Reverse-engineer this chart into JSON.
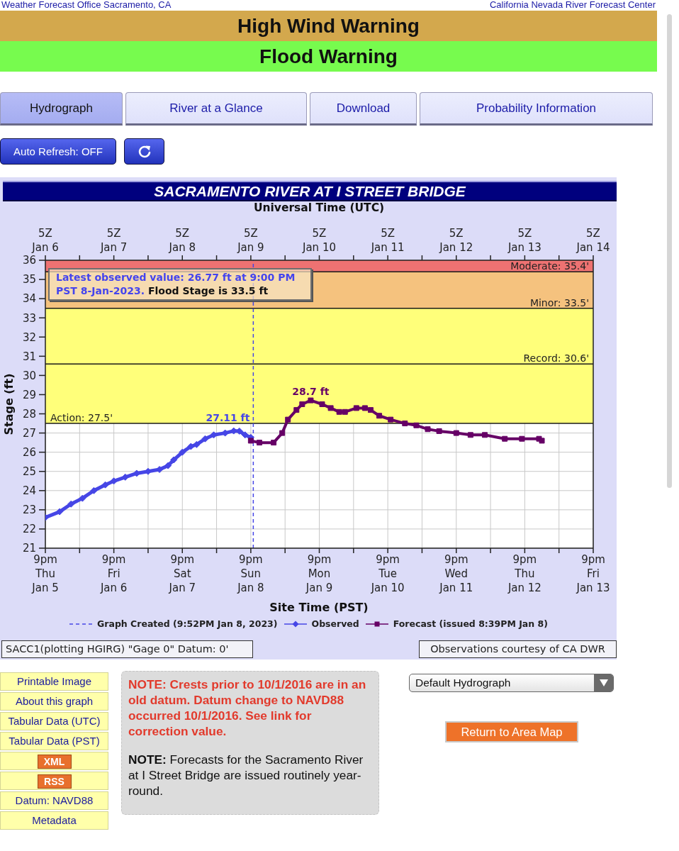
{
  "chart_data": {
    "type": "line",
    "title": "SACRAMENTO RIVER AT I STREET BRIDGE",
    "xlabel": "Site Time (PST)",
    "x2label": "Universal Time (UTC)",
    "ylabel": "Stage (ft)",
    "xlim": [
      "2023-01-05T21:00",
      "2023-01-13T21:00"
    ],
    "xticks": [
      {
        "value": "2023-01-05T21:00",
        "label": "9pm\nThu\nJan 5"
      },
      {
        "value": "2023-01-06T09:00",
        "label": null
      },
      {
        "value": "2023-01-06T21:00",
        "label": "9pm\nFri\nJan 6"
      },
      {
        "value": "2023-01-07T09:00",
        "label": null
      },
      {
        "value": "2023-01-07T21:00",
        "label": "9pm\nSat\nJan 7"
      },
      {
        "value": "2023-01-08T09:00",
        "label": null
      },
      {
        "value": "2023-01-08T21:00",
        "label": "9pm\nSun\nJan 8"
      },
      {
        "value": "2023-01-09T09:00",
        "label": null
      },
      {
        "value": "2023-01-09T21:00",
        "label": "9pm\nMon\nJan 9"
      },
      {
        "value": "2023-01-10T09:00",
        "label": null
      },
      {
        "value": "2023-01-10T21:00",
        "label": "9pm\nTue\nJan 10"
      },
      {
        "value": "2023-01-11T09:00",
        "label": null
      },
      {
        "value": "2023-01-11T21:00",
        "label": "9pm\nWed\nJan 11"
      },
      {
        "value": "2023-01-12T09:00",
        "label": null
      },
      {
        "value": "2023-01-12T21:00",
        "label": "9pm\nThu\nJan 12"
      },
      {
        "value": "2023-01-13T09:00",
        "label": null
      },
      {
        "value": "2023-01-13T21:00",
        "label": "9pm\nFri\nJan 13"
      }
    ],
    "x2lim": [
      "2023-01-06T05:00",
      "2023-01-14T05:00"
    ],
    "x2ticks": [
      {
        "value": "2023-01-06T05:00",
        "label": "5Z\nJan 6"
      },
      {
        "value": "2023-01-06T17:00",
        "label": null
      },
      {
        "value": "2023-01-07T05:00",
        "label": "5Z\nJan 7"
      },
      {
        "value": "2023-01-07T17:00",
        "label": null
      },
      {
        "value": "2023-01-08T05:00",
        "label": "5Z\nJan 8"
      },
      {
        "value": "2023-01-08T17:00",
        "label": null
      },
      {
        "value": "2023-01-09T05:00",
        "label": "5Z\nJan 9"
      },
      {
        "value": "2023-01-09T17:00",
        "label": null
      },
      {
        "value": "2023-01-10T05:00",
        "label": "5Z\nJan 10"
      },
      {
        "value": "2023-01-10T17:00",
        "label": null
      },
      {
        "value": "2023-01-11T05:00",
        "label": "5Z\nJan 11"
      },
      {
        "value": "2023-01-11T17:00",
        "label": null
      },
      {
        "value": "2023-01-12T05:00",
        "label": "5Z\nJan 12"
      },
      {
        "value": "2023-01-12T17:00",
        "label": null
      },
      {
        "value": "2023-01-13T05:00",
        "label": "5Z\nJan 13"
      },
      {
        "value": "2023-01-13T17:00",
        "label": null
      },
      {
        "value": "2023-01-14T05:00",
        "label": "5Z\nJan 14"
      }
    ],
    "ylim": [
      21,
      36
    ],
    "yticks": [
      21,
      22,
      23,
      24,
      25,
      26,
      27,
      28,
      29,
      30,
      31,
      32,
      33,
      34,
      35,
      36
    ],
    "grid": true,
    "legend": "bottom",
    "series": [
      {
        "name": "Observed",
        "color": "#4646e6",
        "marker": "diamond",
        "x": [
          "2023-01-05T21:00",
          "2023-01-06T02:00",
          "2023-01-06T06:00",
          "2023-01-06T10:00",
          "2023-01-06T14:00",
          "2023-01-06T18:00",
          "2023-01-06T21:00",
          "2023-01-07T01:00",
          "2023-01-07T05:00",
          "2023-01-07T09:00",
          "2023-01-07T13:00",
          "2023-01-07T16:00",
          "2023-01-07T18:00",
          "2023-01-07T21:00",
          "2023-01-08T00:00",
          "2023-01-08T02:00",
          "2023-01-08T05:00",
          "2023-01-08T08:00",
          "2023-01-08T12:00",
          "2023-01-08T15:00",
          "2023-01-08T17:00",
          "2023-01-08T19:00",
          "2023-01-08T21:00"
        ],
        "values": [
          22.6,
          22.9,
          23.3,
          23.6,
          24.0,
          24.3,
          24.5,
          24.7,
          24.9,
          25.0,
          25.1,
          25.3,
          25.6,
          26.0,
          26.3,
          26.4,
          26.7,
          26.9,
          27.0,
          27.11,
          27.1,
          26.9,
          26.77
        ]
      },
      {
        "name": "Forecast (issued 8:39PM Jan 8)",
        "color": "#660066",
        "marker": "square",
        "x": [
          "2023-01-08T21:00",
          "2023-01-09T00:00",
          "2023-01-09T05:00",
          "2023-01-09T08:00",
          "2023-01-09T10:00",
          "2023-01-09T13:00",
          "2023-01-09T15:00",
          "2023-01-09T18:00",
          "2023-01-09T22:00",
          "2023-01-10T01:00",
          "2023-01-10T04:00",
          "2023-01-10T06:00",
          "2023-01-10T10:00",
          "2023-01-10T13:00",
          "2023-01-10T15:00",
          "2023-01-10T18:00",
          "2023-01-10T22:00",
          "2023-01-11T03:00",
          "2023-01-11T07:00",
          "2023-01-11T11:00",
          "2023-01-11T15:00",
          "2023-01-11T21:00",
          "2023-01-12T02:00",
          "2023-01-12T07:00",
          "2023-01-12T14:00",
          "2023-01-12T20:00",
          "2023-01-13T02:00",
          "2023-01-13T03:00"
        ],
        "values": [
          26.6,
          26.5,
          26.5,
          27.0,
          27.7,
          28.2,
          28.5,
          28.7,
          28.5,
          28.3,
          28.1,
          28.1,
          28.3,
          28.3,
          28.2,
          27.9,
          27.7,
          27.5,
          27.4,
          27.2,
          27.1,
          27.0,
          26.9,
          26.9,
          26.7,
          26.7,
          26.7,
          26.6
        ]
      }
    ],
    "bands": [
      {
        "axis": "y",
        "from": 27.5,
        "to": 33.5,
        "color": "#ffff7a"
      },
      {
        "axis": "y",
        "from": 33.5,
        "to": 35.4,
        "color": "#f5c27e"
      },
      {
        "axis": "y",
        "from": 35.4,
        "to": 36,
        "color": "#ee7272"
      }
    ],
    "ref_lines": [
      {
        "axis": "y",
        "value": 35.4,
        "label": "Moderate: 35.4'",
        "color": "#1a1a1a"
      },
      {
        "axis": "y",
        "value": 33.5,
        "label": "Minor: 33.5'",
        "color": "#1a1a1a"
      },
      {
        "axis": "y",
        "value": 30.6,
        "label": "Record: 30.6'",
        "color": "#1a1a1a"
      },
      {
        "axis": "y",
        "value": 27.5,
        "label": "Action: 27.5'",
        "color": "#1a1a1a"
      },
      {
        "axis": "x",
        "value": "2023-01-08T21:52",
        "label": "Graph Created (9:52PM Jan 8, 2023)",
        "color": "#4646e6",
        "line_style": "dashed"
      }
    ],
    "annotations": [
      "Weather Forecast Office Sacramento, CA",
      "California Nevada River Forecast Center",
      "High Wind Warning",
      "Flood Warning",
      "Hydrograph",
      "River at a Glance",
      "Download",
      "Probability Information",
      "Auto Refresh: OFF",
      "Latest observed value: 26.77 ft at 9:00 PM PST 8-Jan-2023. Flood Stage is 33.5 ft",
      {
        "text": "27.11 ft",
        "x": "2023-01-08T15:00",
        "y": 27.11
      },
      {
        "text": "28.7 ft",
        "x": "2023-01-09T18:00",
        "y": 28.7
      },
      "SACC1(plotting HGIRG) \"Gage 0\" Datum: 0'",
      "Observations courtesy of CA DWR",
      "Printable Image",
      "About this graph",
      "Tabular Data (UTC)",
      "Tabular Data (PST)",
      "XML",
      "RSS",
      "Datum: NAVD88",
      "Metadata",
      "NOTE: Crests prior to 10/1/2016 are in an old datum. Datum change to NAVD88 occurred 10/1/2016. See link for correction value.",
      "NOTE: Forecasts for the Sacramento River at I Street Bridge are issued routinely year-round.",
      "Default Hydrograph",
      "Return to Area Map"
    ]
  }
}
